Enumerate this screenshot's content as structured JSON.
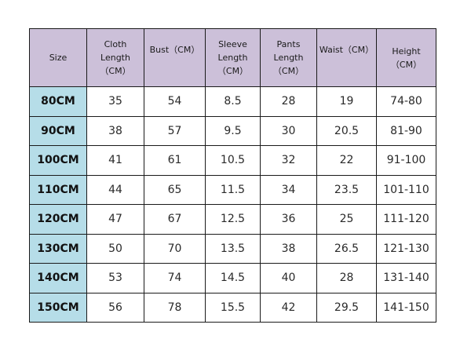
{
  "table": {
    "headers": [
      "Size",
      "Cloth\nLength\n（CM）",
      "Bust（CM）",
      "Sleeve\nLength\n（CM）",
      "Pants\nLength\n（CM）",
      "Waist（CM）",
      "Height\n（CM）"
    ],
    "rows": [
      [
        "80CM",
        "35",
        "54",
        "8.5",
        "28",
        "19",
        "74-80"
      ],
      [
        "90CM",
        "38",
        "57",
        "9.5",
        "30",
        "20.5",
        "81-90"
      ],
      [
        "100CM",
        "41",
        "61",
        "10.5",
        "32",
        "22",
        "91-100"
      ],
      [
        "110CM",
        "44",
        "65",
        "11.5",
        "34",
        "23.5",
        "101-110"
      ],
      [
        "120CM",
        "47",
        "67",
        "12.5",
        "36",
        "25",
        "111-120"
      ],
      [
        "130CM",
        "50",
        "70",
        "13.5",
        "38",
        "26.5",
        "121-130"
      ],
      [
        "140CM",
        "53",
        "74",
        "14.5",
        "40",
        "28",
        "131-140"
      ],
      [
        "150CM",
        "56",
        "78",
        "15.5",
        "42",
        "29.5",
        "141-150"
      ]
    ]
  },
  "colors": {
    "header_bg": "#ccc0d9",
    "size_column_bg": "#b6dde8",
    "border": "#1a1a1a"
  }
}
